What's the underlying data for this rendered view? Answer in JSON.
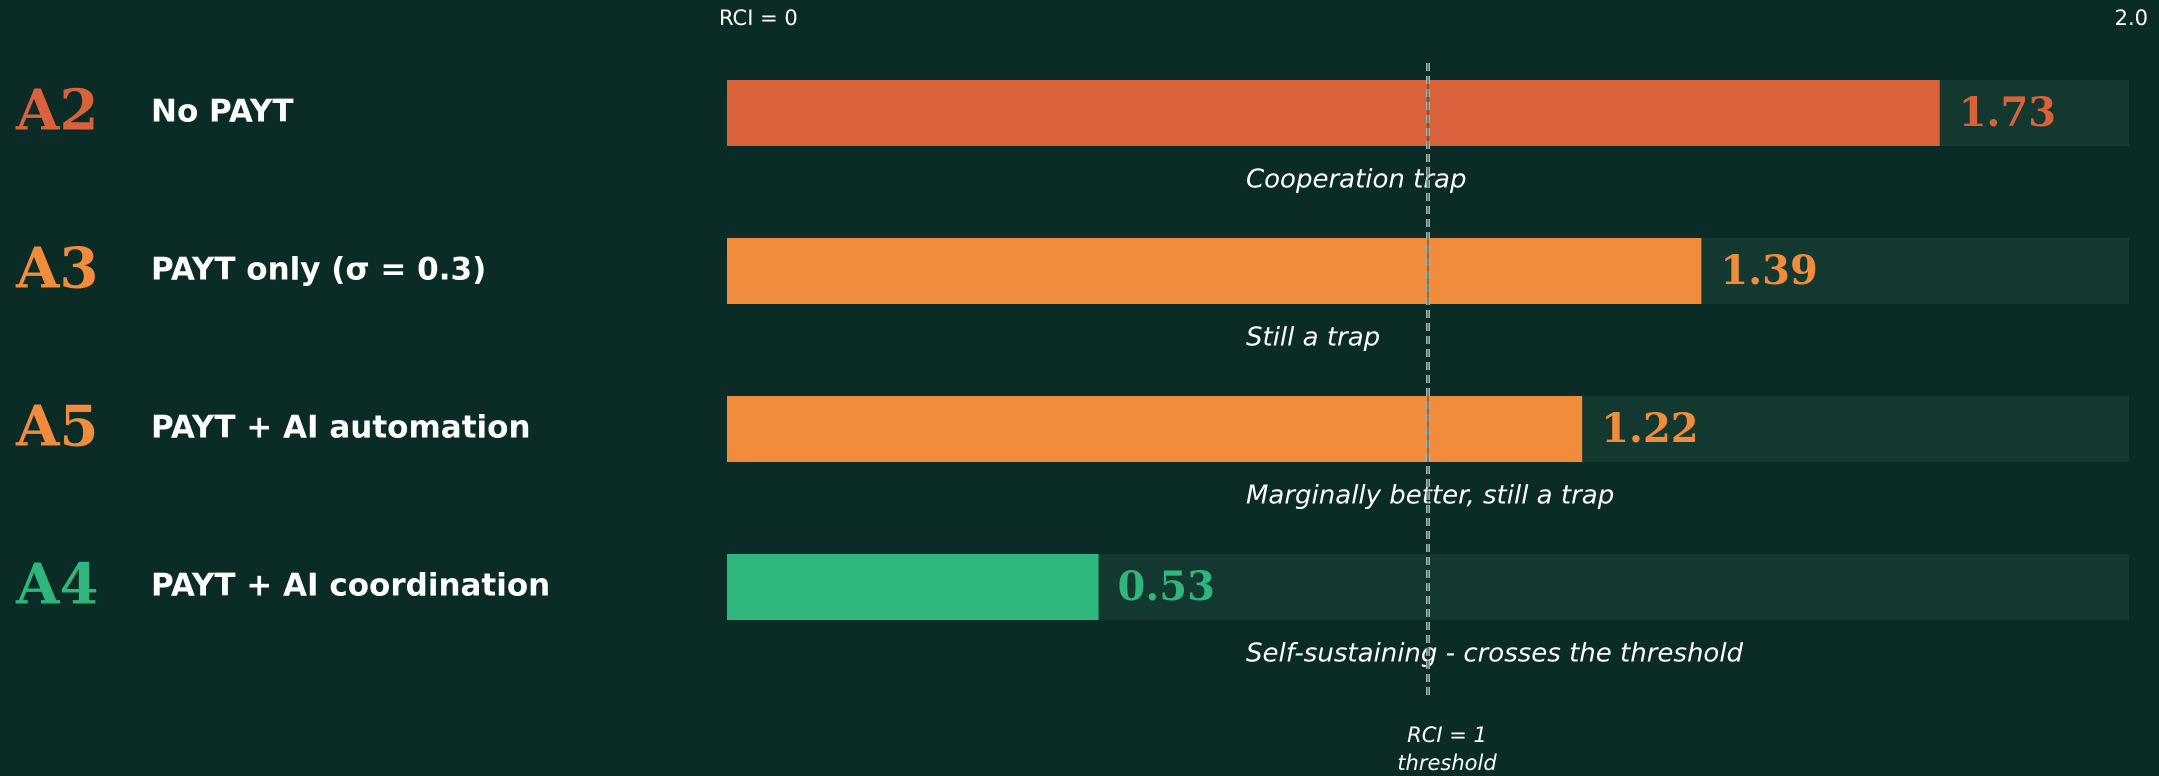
{
  "chart_data": {
    "type": "bar",
    "orientation": "horizontal",
    "codes": [
      "A2",
      "A3",
      "A5",
      "A4"
    ],
    "categories": [
      "No PAYT",
      "PAYT only (σ = 0.3)",
      "PAYT + AI automation",
      "PAYT + AI coordination"
    ],
    "values": [
      1.73,
      1.39,
      1.22,
      0.53
    ],
    "colors": [
      "#d9623b",
      "#f08c3c",
      "#f08c3c",
      "#2fb67c"
    ],
    "notes": [
      "Cooperation trap",
      "Still a trap",
      "Marginally better, still a trap",
      "Self-sustaining - crosses the threshold"
    ],
    "xlim": [
      0,
      2
    ],
    "xticks": [
      {
        "value": 0,
        "label": "RCI = 0"
      },
      {
        "value": 2,
        "label": "2.0"
      }
    ],
    "threshold": {
      "value": 1,
      "label": [
        "RCI = 1",
        "threshold"
      ]
    }
  }
}
